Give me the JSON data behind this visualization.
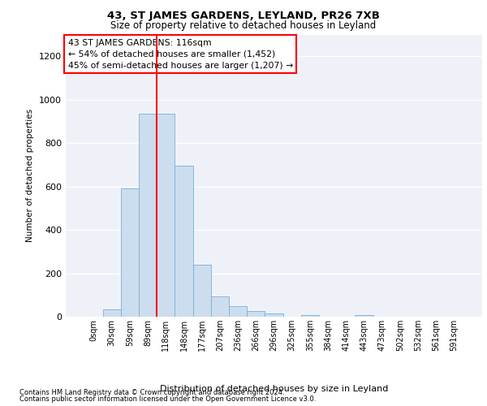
{
  "title": "43, ST JAMES GARDENS, LEYLAND, PR26 7XB",
  "subtitle": "Size of property relative to detached houses in Leyland",
  "xlabel": "Distribution of detached houses by size in Leyland",
  "ylabel": "Number of detached properties",
  "bin_labels": [
    "0sqm",
    "30sqm",
    "59sqm",
    "89sqm",
    "118sqm",
    "148sqm",
    "177sqm",
    "207sqm",
    "236sqm",
    "266sqm",
    "296sqm",
    "325sqm",
    "355sqm",
    "384sqm",
    "414sqm",
    "443sqm",
    "473sqm",
    "502sqm",
    "532sqm",
    "561sqm",
    "591sqm"
  ],
  "bar_heights": [
    0,
    35,
    590,
    935,
    935,
    695,
    240,
    95,
    50,
    25,
    15,
    0,
    8,
    0,
    0,
    8,
    0,
    0,
    0,
    0,
    0
  ],
  "bar_color": "#ccddef",
  "bar_edge_color": "#7aafd4",
  "vline_color": "red",
  "annotation_text": "43 ST JAMES GARDENS: 116sqm\n← 54% of detached houses are smaller (1,452)\n45% of semi-detached houses are larger (1,207) →",
  "annotation_box_color": "white",
  "annotation_box_edge": "red",
  "ylim": [
    0,
    1300
  ],
  "yticks": [
    0,
    200,
    400,
    600,
    800,
    1000,
    1200
  ],
  "footer_line1": "Contains HM Land Registry data © Crown copyright and database right 2024.",
  "footer_line2": "Contains public sector information licensed under the Open Government Licence v3.0.",
  "plot_bg_color": "#eef2f8"
}
